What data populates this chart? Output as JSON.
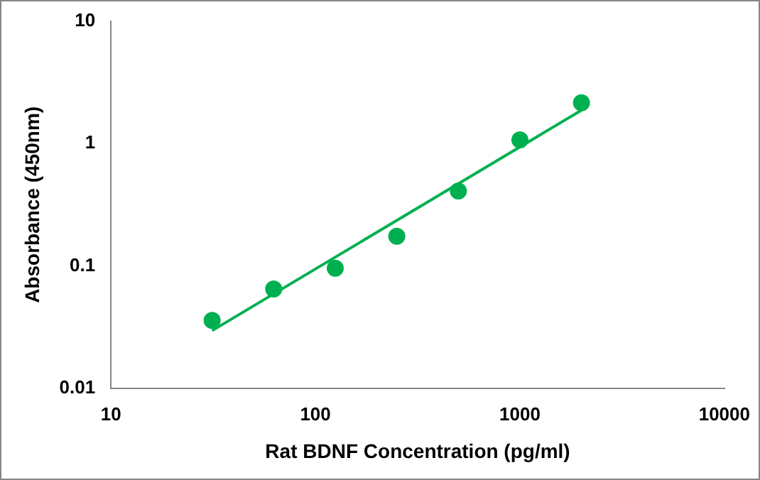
{
  "chart_data": {
    "type": "scatter",
    "xlabel": "Rat BDNF Concentration (pg/ml)",
    "ylabel": "Absorbance (450nm)",
    "log": "xy",
    "xlim": [
      10,
      10000
    ],
    "xticks": [
      10,
      100,
      1000,
      10000
    ],
    "ylim": [
      0.01,
      10
    ],
    "yticks": [
      0.01,
      0.1,
      1,
      10
    ],
    "grid": false,
    "legend": false,
    "marker": "circle",
    "series": [
      {
        "type": "scatter",
        "color": "#00b050",
        "x": [
          31.25,
          62.5,
          125,
          250,
          500,
          1000,
          2000
        ],
        "values": [
          0.036,
          0.065,
          0.096,
          0.175,
          0.41,
          1.07,
          2.15
        ]
      },
      {
        "type": "line",
        "color": "#00b050",
        "line_style": "solid",
        "marker": "none",
        "x": [
          31.25,
          2000
        ],
        "values": [
          0.0297,
          1.87
        ]
      }
    ]
  }
}
